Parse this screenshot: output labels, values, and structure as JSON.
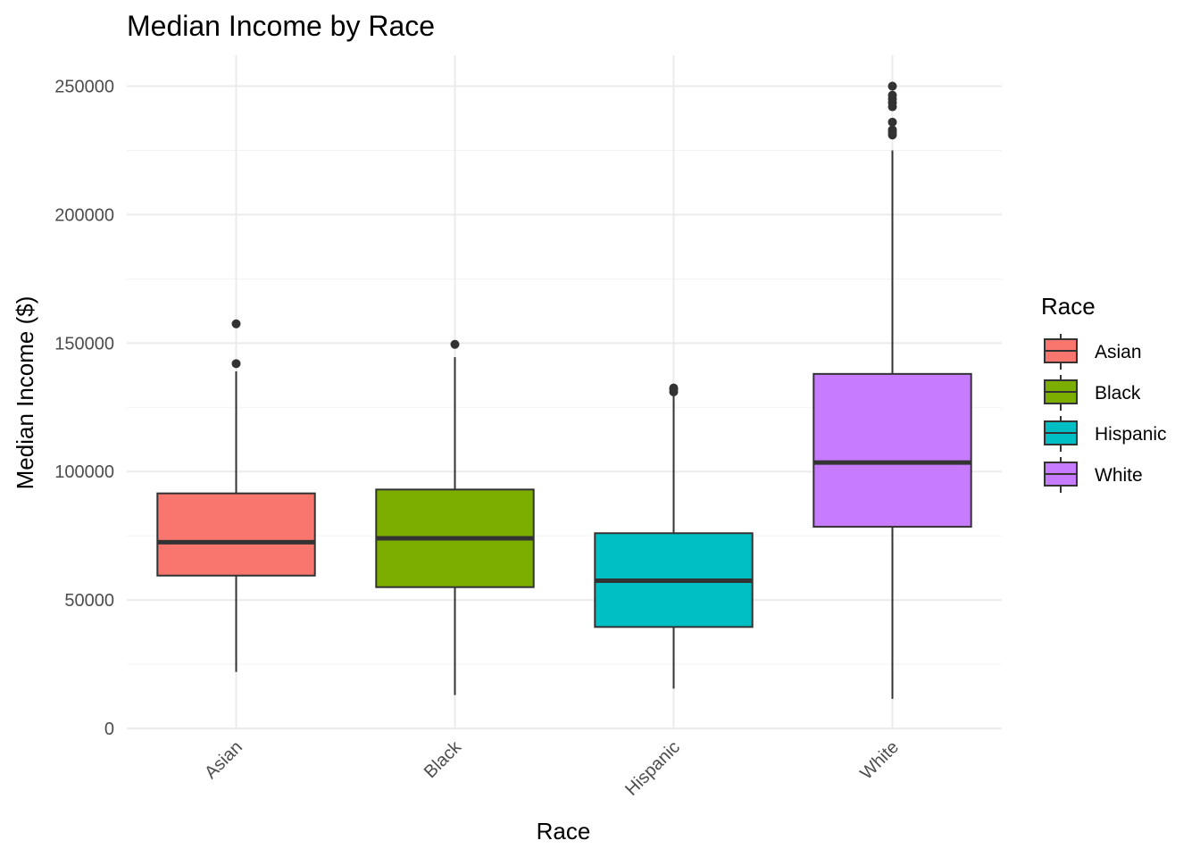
{
  "chart_data": {
    "type": "box",
    "title": "Median Income by Race",
    "xlabel": "Race",
    "ylabel": "Median Income ($)",
    "ylim": [
      0,
      262000
    ],
    "y_ticks": [
      0,
      50000,
      100000,
      150000,
      200000,
      250000
    ],
    "y_tick_labels": [
      "0",
      "50000",
      "100000",
      "150000",
      "200000",
      "250000"
    ],
    "categories": [
      "Asian",
      "Black",
      "Hispanic",
      "White"
    ],
    "grid": true,
    "legend_title": "Race",
    "legend_position": "right",
    "series": [
      {
        "name": "Asian",
        "color": "#F8766D",
        "whisker_low": 22000,
        "q1": 59500,
        "median": 72500,
        "q3": 91500,
        "whisker_high": 139000,
        "outliers": [
          142000,
          157500
        ]
      },
      {
        "name": "Black",
        "color": "#7CAE00",
        "whisker_low": 13000,
        "q1": 55000,
        "median": 74000,
        "q3": 93000,
        "whisker_high": 144500,
        "outliers": [
          149500
        ]
      },
      {
        "name": "Hispanic",
        "color": "#00BFC4",
        "whisker_low": 15500,
        "q1": 39500,
        "median": 57500,
        "q3": 76000,
        "whisker_high": 130000,
        "outliers": [
          131000,
          132000,
          132500
        ]
      },
      {
        "name": "White",
        "color": "#C77CFF",
        "whisker_low": 11500,
        "q1": 78500,
        "median": 103500,
        "q3": 138000,
        "whisker_high": 225000,
        "outliers": [
          231000,
          232000,
          233000,
          236000,
          242000,
          243500,
          245000,
          246500,
          250000
        ]
      }
    ]
  }
}
